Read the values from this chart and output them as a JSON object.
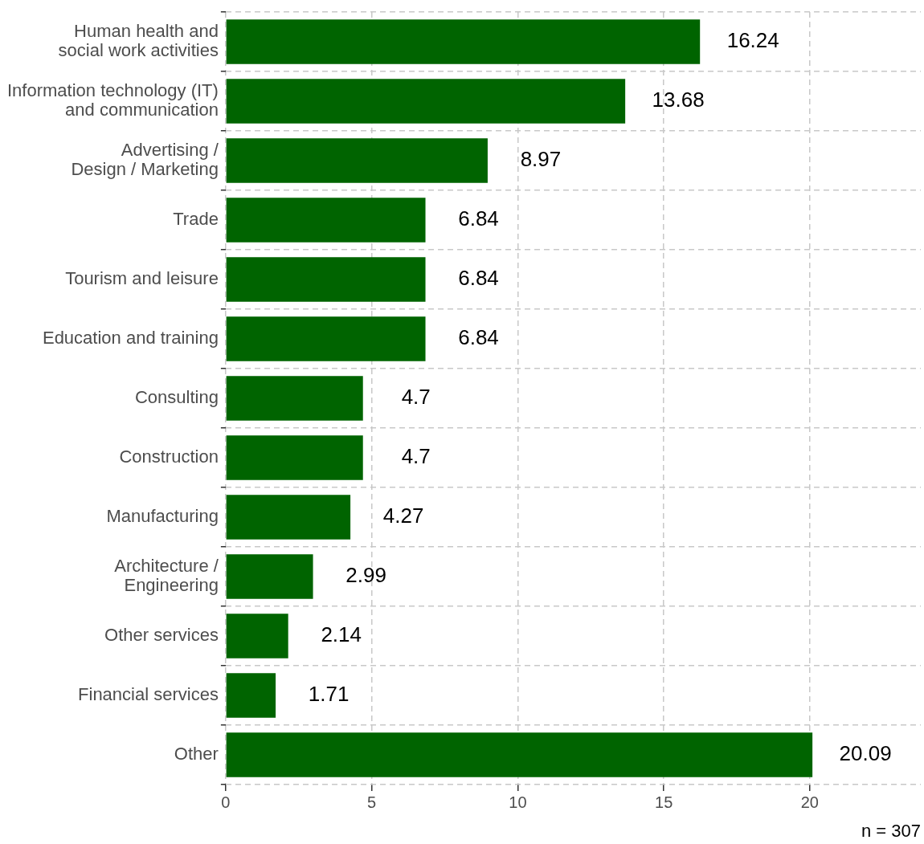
{
  "chart_data": {
    "type": "bar",
    "orientation": "horizontal",
    "categories": [
      "Human health and\nsocial work activities",
      "Information technology (IT)\nand communication",
      "Advertising /\nDesign / Marketing",
      "Trade",
      "Tourism and leisure",
      "Education and training",
      "Consulting",
      "Construction",
      "Manufacturing",
      "Architecture /\nEngineering",
      "Other services",
      "Financial services",
      "Other"
    ],
    "values": [
      16.24,
      13.68,
      8.97,
      6.84,
      6.84,
      6.84,
      4.7,
      4.7,
      4.27,
      2.99,
      2.14,
      1.71,
      20.09
    ],
    "color": "#006400",
    "xlim": [
      0,
      23.8
    ],
    "xticks": [
      0,
      5,
      10,
      15,
      20
    ],
    "grid": true,
    "data_labels": true,
    "legend": false,
    "annotations": [
      "n = 307"
    ]
  }
}
